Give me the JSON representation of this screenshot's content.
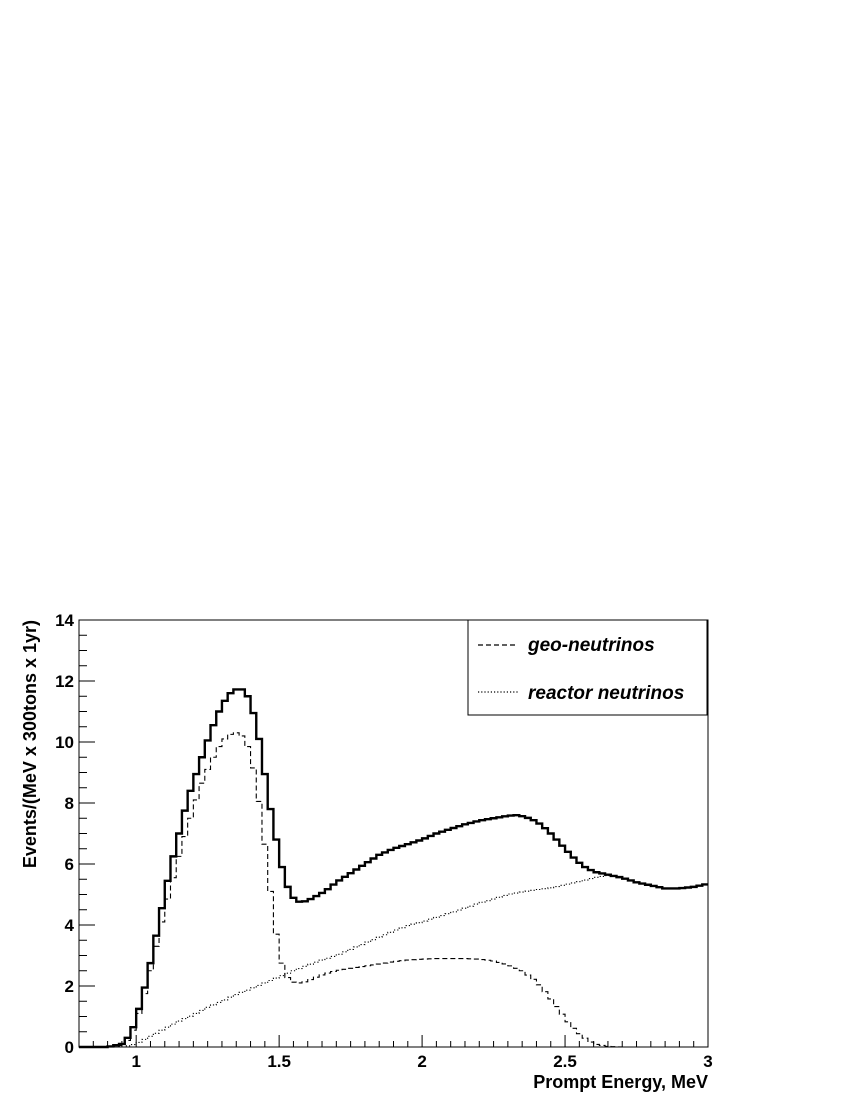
{
  "chart_data": {
    "type": "line",
    "title": "",
    "xlabel": "Prompt Energy, MeV",
    "ylabel": "Events/(MeV x 300tons x 1yr)",
    "xlim": [
      0.8,
      3.0
    ],
    "ylim": [
      0,
      14
    ],
    "x_ticks": [
      1,
      1.5,
      2,
      2.5,
      3
    ],
    "x_tick_labels": [
      "1",
      "1.5",
      "2",
      "2.5",
      "3"
    ],
    "y_ticks": [
      0,
      2,
      4,
      6,
      8,
      10,
      12,
      14
    ],
    "y_tick_labels": [
      "0",
      "2",
      "4",
      "6",
      "8",
      "10",
      "12",
      "14"
    ],
    "grid": false,
    "legend_position": "top-right",
    "series": [
      {
        "name": "",
        "style": "solid-thick",
        "color": "#000000",
        "points": [
          [
            0.8,
            0
          ],
          [
            0.9,
            0
          ],
          [
            0.95,
            0.1
          ],
          [
            0.98,
            0.4
          ],
          [
            1.0,
            0.9
          ],
          [
            1.02,
            1.6
          ],
          [
            1.04,
            2.3
          ],
          [
            1.06,
            3.2
          ],
          [
            1.08,
            4.1
          ],
          [
            1.1,
            5.0
          ],
          [
            1.12,
            5.9
          ],
          [
            1.14,
            6.6
          ],
          [
            1.16,
            7.4
          ],
          [
            1.18,
            8.1
          ],
          [
            1.2,
            8.7
          ],
          [
            1.22,
            9.2
          ],
          [
            1.24,
            9.8
          ],
          [
            1.26,
            10.3
          ],
          [
            1.28,
            10.8
          ],
          [
            1.3,
            11.2
          ],
          [
            1.32,
            11.5
          ],
          [
            1.34,
            11.7
          ],
          [
            1.36,
            11.75
          ],
          [
            1.38,
            11.7
          ],
          [
            1.4,
            11.3
          ],
          [
            1.42,
            10.6
          ],
          [
            1.44,
            9.6
          ],
          [
            1.46,
            8.3
          ],
          [
            1.48,
            7.3
          ],
          [
            1.5,
            6.3
          ],
          [
            1.52,
            5.5
          ],
          [
            1.54,
            5.0
          ],
          [
            1.56,
            4.78
          ],
          [
            1.58,
            4.75
          ],
          [
            1.6,
            4.8
          ],
          [
            1.62,
            4.9
          ],
          [
            1.66,
            5.1
          ],
          [
            1.7,
            5.4
          ],
          [
            1.75,
            5.7
          ],
          [
            1.8,
            6.0
          ],
          [
            1.85,
            6.3
          ],
          [
            1.9,
            6.5
          ],
          [
            1.95,
            6.65
          ],
          [
            2.0,
            6.8
          ],
          [
            2.05,
            7.0
          ],
          [
            2.1,
            7.15
          ],
          [
            2.15,
            7.3
          ],
          [
            2.2,
            7.42
          ],
          [
            2.25,
            7.5
          ],
          [
            2.3,
            7.58
          ],
          [
            2.33,
            7.6
          ],
          [
            2.36,
            7.55
          ],
          [
            2.4,
            7.4
          ],
          [
            2.44,
            7.1
          ],
          [
            2.48,
            6.7
          ],
          [
            2.52,
            6.3
          ],
          [
            2.56,
            5.95
          ],
          [
            2.6,
            5.75
          ],
          [
            2.65,
            5.65
          ],
          [
            2.7,
            5.55
          ],
          [
            2.75,
            5.4
          ],
          [
            2.8,
            5.3
          ],
          [
            2.85,
            5.2
          ],
          [
            2.9,
            5.2
          ],
          [
            2.95,
            5.25
          ],
          [
            3.0,
            5.35
          ]
        ]
      },
      {
        "name": "geo-neutrinos",
        "style": "dashed",
        "color": "#000000",
        "points": [
          [
            0.8,
            0
          ],
          [
            0.9,
            0
          ],
          [
            0.95,
            0.05
          ],
          [
            0.98,
            0.3
          ],
          [
            1.0,
            0.8
          ],
          [
            1.02,
            1.4
          ],
          [
            1.04,
            2.1
          ],
          [
            1.06,
            2.9
          ],
          [
            1.08,
            3.7
          ],
          [
            1.1,
            4.5
          ],
          [
            1.12,
            5.2
          ],
          [
            1.14,
            5.9
          ],
          [
            1.16,
            6.6
          ],
          [
            1.18,
            7.2
          ],
          [
            1.2,
            7.8
          ],
          [
            1.22,
            8.4
          ],
          [
            1.24,
            8.9
          ],
          [
            1.26,
            9.3
          ],
          [
            1.28,
            9.7
          ],
          [
            1.3,
            10.0
          ],
          [
            1.32,
            10.2
          ],
          [
            1.34,
            10.3
          ],
          [
            1.36,
            10.3
          ],
          [
            1.38,
            10.1
          ],
          [
            1.4,
            9.6
          ],
          [
            1.42,
            8.7
          ],
          [
            1.44,
            7.4
          ],
          [
            1.46,
            5.9
          ],
          [
            1.48,
            4.3
          ],
          [
            1.5,
            3.1
          ],
          [
            1.52,
            2.4
          ],
          [
            1.54,
            2.15
          ],
          [
            1.56,
            2.1
          ],
          [
            1.58,
            2.1
          ],
          [
            1.62,
            2.25
          ],
          [
            1.66,
            2.4
          ],
          [
            1.7,
            2.5
          ],
          [
            1.75,
            2.58
          ],
          [
            1.8,
            2.65
          ],
          [
            1.85,
            2.72
          ],
          [
            1.9,
            2.8
          ],
          [
            1.95,
            2.85
          ],
          [
            2.0,
            2.88
          ],
          [
            2.05,
            2.9
          ],
          [
            2.1,
            2.9
          ],
          [
            2.15,
            2.9
          ],
          [
            2.2,
            2.88
          ],
          [
            2.25,
            2.82
          ],
          [
            2.3,
            2.7
          ],
          [
            2.35,
            2.5
          ],
          [
            2.4,
            2.15
          ],
          [
            2.44,
            1.7
          ],
          [
            2.48,
            1.2
          ],
          [
            2.52,
            0.7
          ],
          [
            2.56,
            0.35
          ],
          [
            2.6,
            0.1
          ],
          [
            2.65,
            0.02
          ],
          [
            2.7,
            0
          ],
          [
            3.0,
            0
          ]
        ]
      },
      {
        "name": "reactor neutrinos",
        "style": "dotted",
        "color": "#000000",
        "points": [
          [
            0.8,
            0
          ],
          [
            0.95,
            0
          ],
          [
            1.0,
            0.1
          ],
          [
            1.05,
            0.35
          ],
          [
            1.1,
            0.6
          ],
          [
            1.15,
            0.85
          ],
          [
            1.2,
            1.05
          ],
          [
            1.25,
            1.3
          ],
          [
            1.3,
            1.5
          ],
          [
            1.35,
            1.72
          ],
          [
            1.4,
            1.9
          ],
          [
            1.45,
            2.1
          ],
          [
            1.5,
            2.3
          ],
          [
            1.55,
            2.5
          ],
          [
            1.6,
            2.68
          ],
          [
            1.65,
            2.85
          ],
          [
            1.7,
            3.0
          ],
          [
            1.75,
            3.2
          ],
          [
            1.8,
            3.4
          ],
          [
            1.85,
            3.6
          ],
          [
            1.9,
            3.8
          ],
          [
            1.95,
            3.98
          ],
          [
            2.0,
            4.1
          ],
          [
            2.05,
            4.25
          ],
          [
            2.1,
            4.4
          ],
          [
            2.15,
            4.55
          ],
          [
            2.2,
            4.72
          ],
          [
            2.25,
            4.85
          ],
          [
            2.3,
            5.0
          ],
          [
            2.35,
            5.08
          ],
          [
            2.4,
            5.15
          ],
          [
            2.45,
            5.22
          ],
          [
            2.5,
            5.32
          ],
          [
            2.55,
            5.42
          ],
          [
            2.6,
            5.55
          ],
          [
            2.65,
            5.62
          ],
          [
            2.7,
            5.55
          ],
          [
            2.75,
            5.4
          ],
          [
            2.8,
            5.3
          ],
          [
            2.85,
            5.2
          ],
          [
            2.9,
            5.2
          ],
          [
            2.95,
            5.25
          ],
          [
            3.0,
            5.35
          ]
        ]
      }
    ]
  }
}
